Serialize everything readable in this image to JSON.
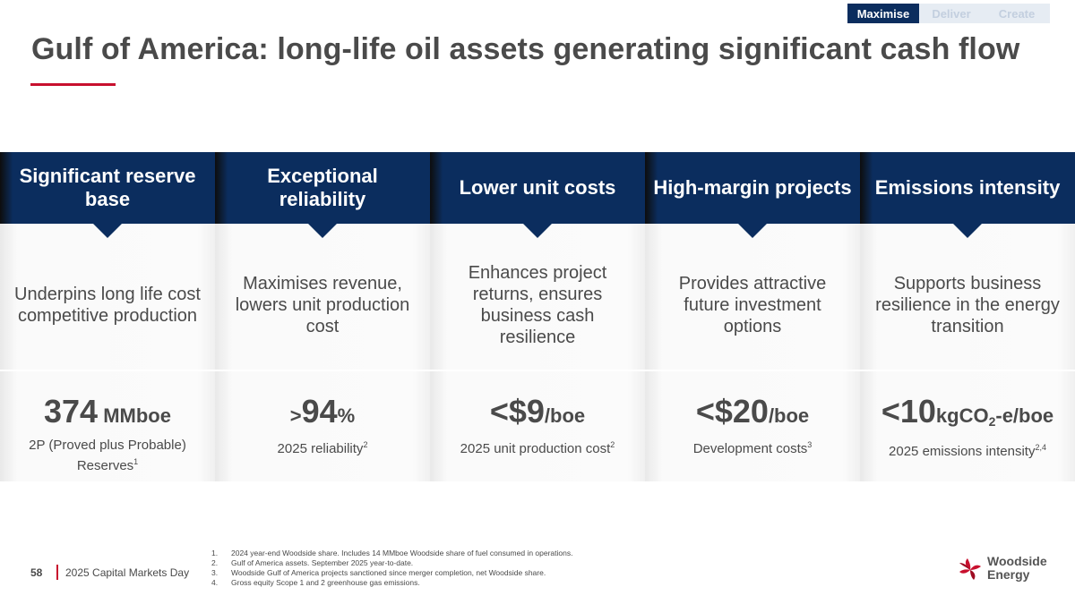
{
  "nav": {
    "tabs": [
      {
        "label": "Maximise",
        "active": true
      },
      {
        "label": "Deliver",
        "active": false
      },
      {
        "label": "Create",
        "active": false
      }
    ]
  },
  "title": "Gulf of America: long-life oil assets generating significant cash flow",
  "colors": {
    "navy": "#0b2d5e",
    "accent_red": "#c8102e",
    "text": "#4a4a4a"
  },
  "columns": [
    {
      "header": "Significant reserve base",
      "description": "Underpins long life cost competitive production",
      "metric_prefix": "",
      "metric_value": "374",
      "metric_unit": " MMboe",
      "metric_label": "2P (Proved plus Probable) Reserves",
      "metric_sup": "1"
    },
    {
      "header": "Exceptional reliability",
      "description": "Maximises revenue, lowers unit production cost",
      "metric_prefix": ">",
      "metric_value": "94",
      "metric_unit": "%",
      "metric_label": "2025 reliability",
      "metric_sup": "2"
    },
    {
      "header": "Lower unit costs",
      "description": "Enhances project returns, ensures business cash resilience",
      "metric_prefix": "<",
      "metric_value": "$9",
      "metric_unit": "/boe",
      "metric_label": "2025 unit production cost",
      "metric_sup": "2"
    },
    {
      "header": "High-margin projects",
      "description": "Provides attractive future investment options",
      "metric_prefix": "<",
      "metric_value": "$20",
      "metric_unit": "/boe",
      "metric_label": "Development costs",
      "metric_sup": "3"
    },
    {
      "header": "Emissions intensity",
      "description": "Supports business resilience in the energy transition",
      "metric_prefix": "<",
      "metric_value": "10",
      "metric_unit_a": "kgCO",
      "metric_unit_sub": "2",
      "metric_unit_b": "-e/boe",
      "metric_label": "2025 emissions intensity",
      "metric_sup": "2,4"
    }
  ],
  "footnotes": [
    {
      "num": "1.",
      "text": "2024 year-end Woodside share. Includes 14 MMboe Woodside share of fuel consumed in operations."
    },
    {
      "num": "2.",
      "text": "Gulf of America assets. September 2025 year-to-date."
    },
    {
      "num": "3.",
      "text": "Woodside Gulf of America projects sanctioned since merger completion, net Woodside share."
    },
    {
      "num": "4.",
      "text": "Gross equity Scope 1 and 2 greenhouse gas emissions."
    }
  ],
  "footer": {
    "page_number": "58",
    "event": "2025 Capital Markets Day"
  },
  "logo": {
    "line1": "Woodside",
    "line2": "Energy",
    "icon": "woodside-flower-icon"
  }
}
